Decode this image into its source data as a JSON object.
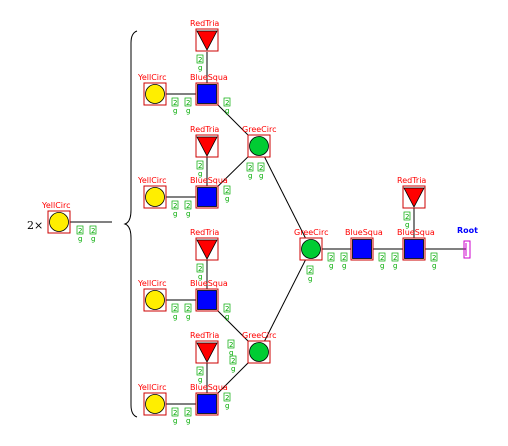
{
  "multiplier": "2×",
  "labels": {
    "yell_circ": "YellCirc",
    "blue_squa": "BlueSqua",
    "red_tria": "RedTria",
    "gree_circ": "GreeCirc",
    "root": "Root"
  },
  "tag": {
    "top": "2",
    "bottom": "g"
  },
  "colors": {
    "yellow": "#ffee00",
    "blue": "#0000ff",
    "green": "#00cc33",
    "red": "#ff0000",
    "box_border": "#cc0000",
    "root_glyph": "#cc00cc",
    "tag_text": "#00aa00"
  }
}
